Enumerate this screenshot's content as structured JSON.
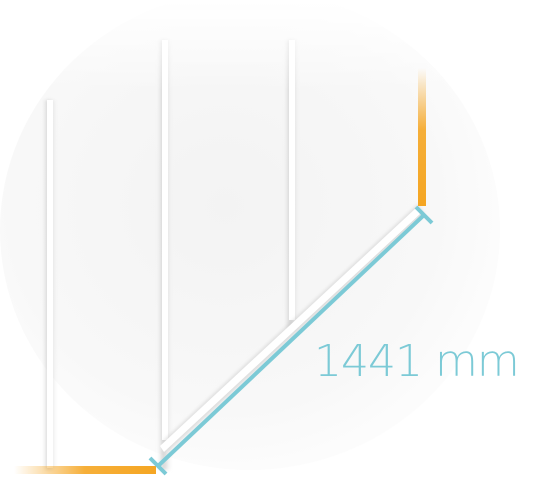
{
  "dimension": {
    "value": "1441",
    "unit": "mm",
    "label": "1441 mm"
  },
  "colors": {
    "dimension_line": "#7ccad6",
    "edge_highlight": "#f5a623",
    "background": "#ffffff",
    "panel_shadow": "#d9d9d9"
  },
  "icons": {
    "dimension": "measurement-line-icon"
  }
}
